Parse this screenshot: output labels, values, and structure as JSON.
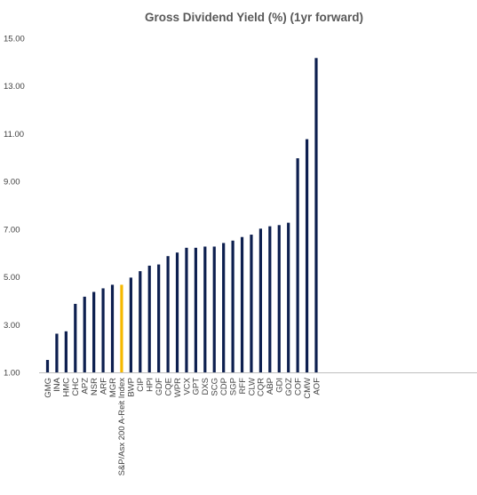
{
  "chart_data": {
    "type": "bar",
    "title": "Gross Dividend Yield (%) (1yr forward)",
    "xlabel": "",
    "ylabel": "",
    "ylim": [
      1.0,
      15.0
    ],
    "yticks": [
      "1.00",
      "3.00",
      "5.00",
      "7.00",
      "9.00",
      "11.00",
      "13.00",
      "15.00"
    ],
    "grid": false,
    "legend": "none",
    "bar_color": "#0d1f4f",
    "highlight_color": "#f5b800",
    "axis_color": "#bfbfbf",
    "highlight_category": "S&P/Asx 200 A-Reit Index",
    "categories": [
      "GMG",
      "INA",
      "HMC",
      "CHC",
      "APZ",
      "NSR",
      "ARF",
      "MGR",
      "S&P/Asx 200 A-Reit Index",
      "BWP",
      "CIP",
      "HPI",
      "GDF",
      "CQE",
      "WPR",
      "VCX",
      "GPT",
      "DXS",
      "SCG",
      "CDP",
      "SGP",
      "RFF",
      "CLW",
      "CQR",
      "ABP",
      "GDI",
      "GOZ",
      "COF",
      "CMW",
      "AOF"
    ],
    "values": [
      1.52,
      2.62,
      2.72,
      3.87,
      4.17,
      4.37,
      4.52,
      4.67,
      4.67,
      4.97,
      5.24,
      5.47,
      5.52,
      5.87,
      6.02,
      6.22,
      6.22,
      6.27,
      6.27,
      6.42,
      6.52,
      6.67,
      6.77,
      7.02,
      7.12,
      7.17,
      7.27,
      9.97,
      10.77,
      14.17
    ]
  }
}
